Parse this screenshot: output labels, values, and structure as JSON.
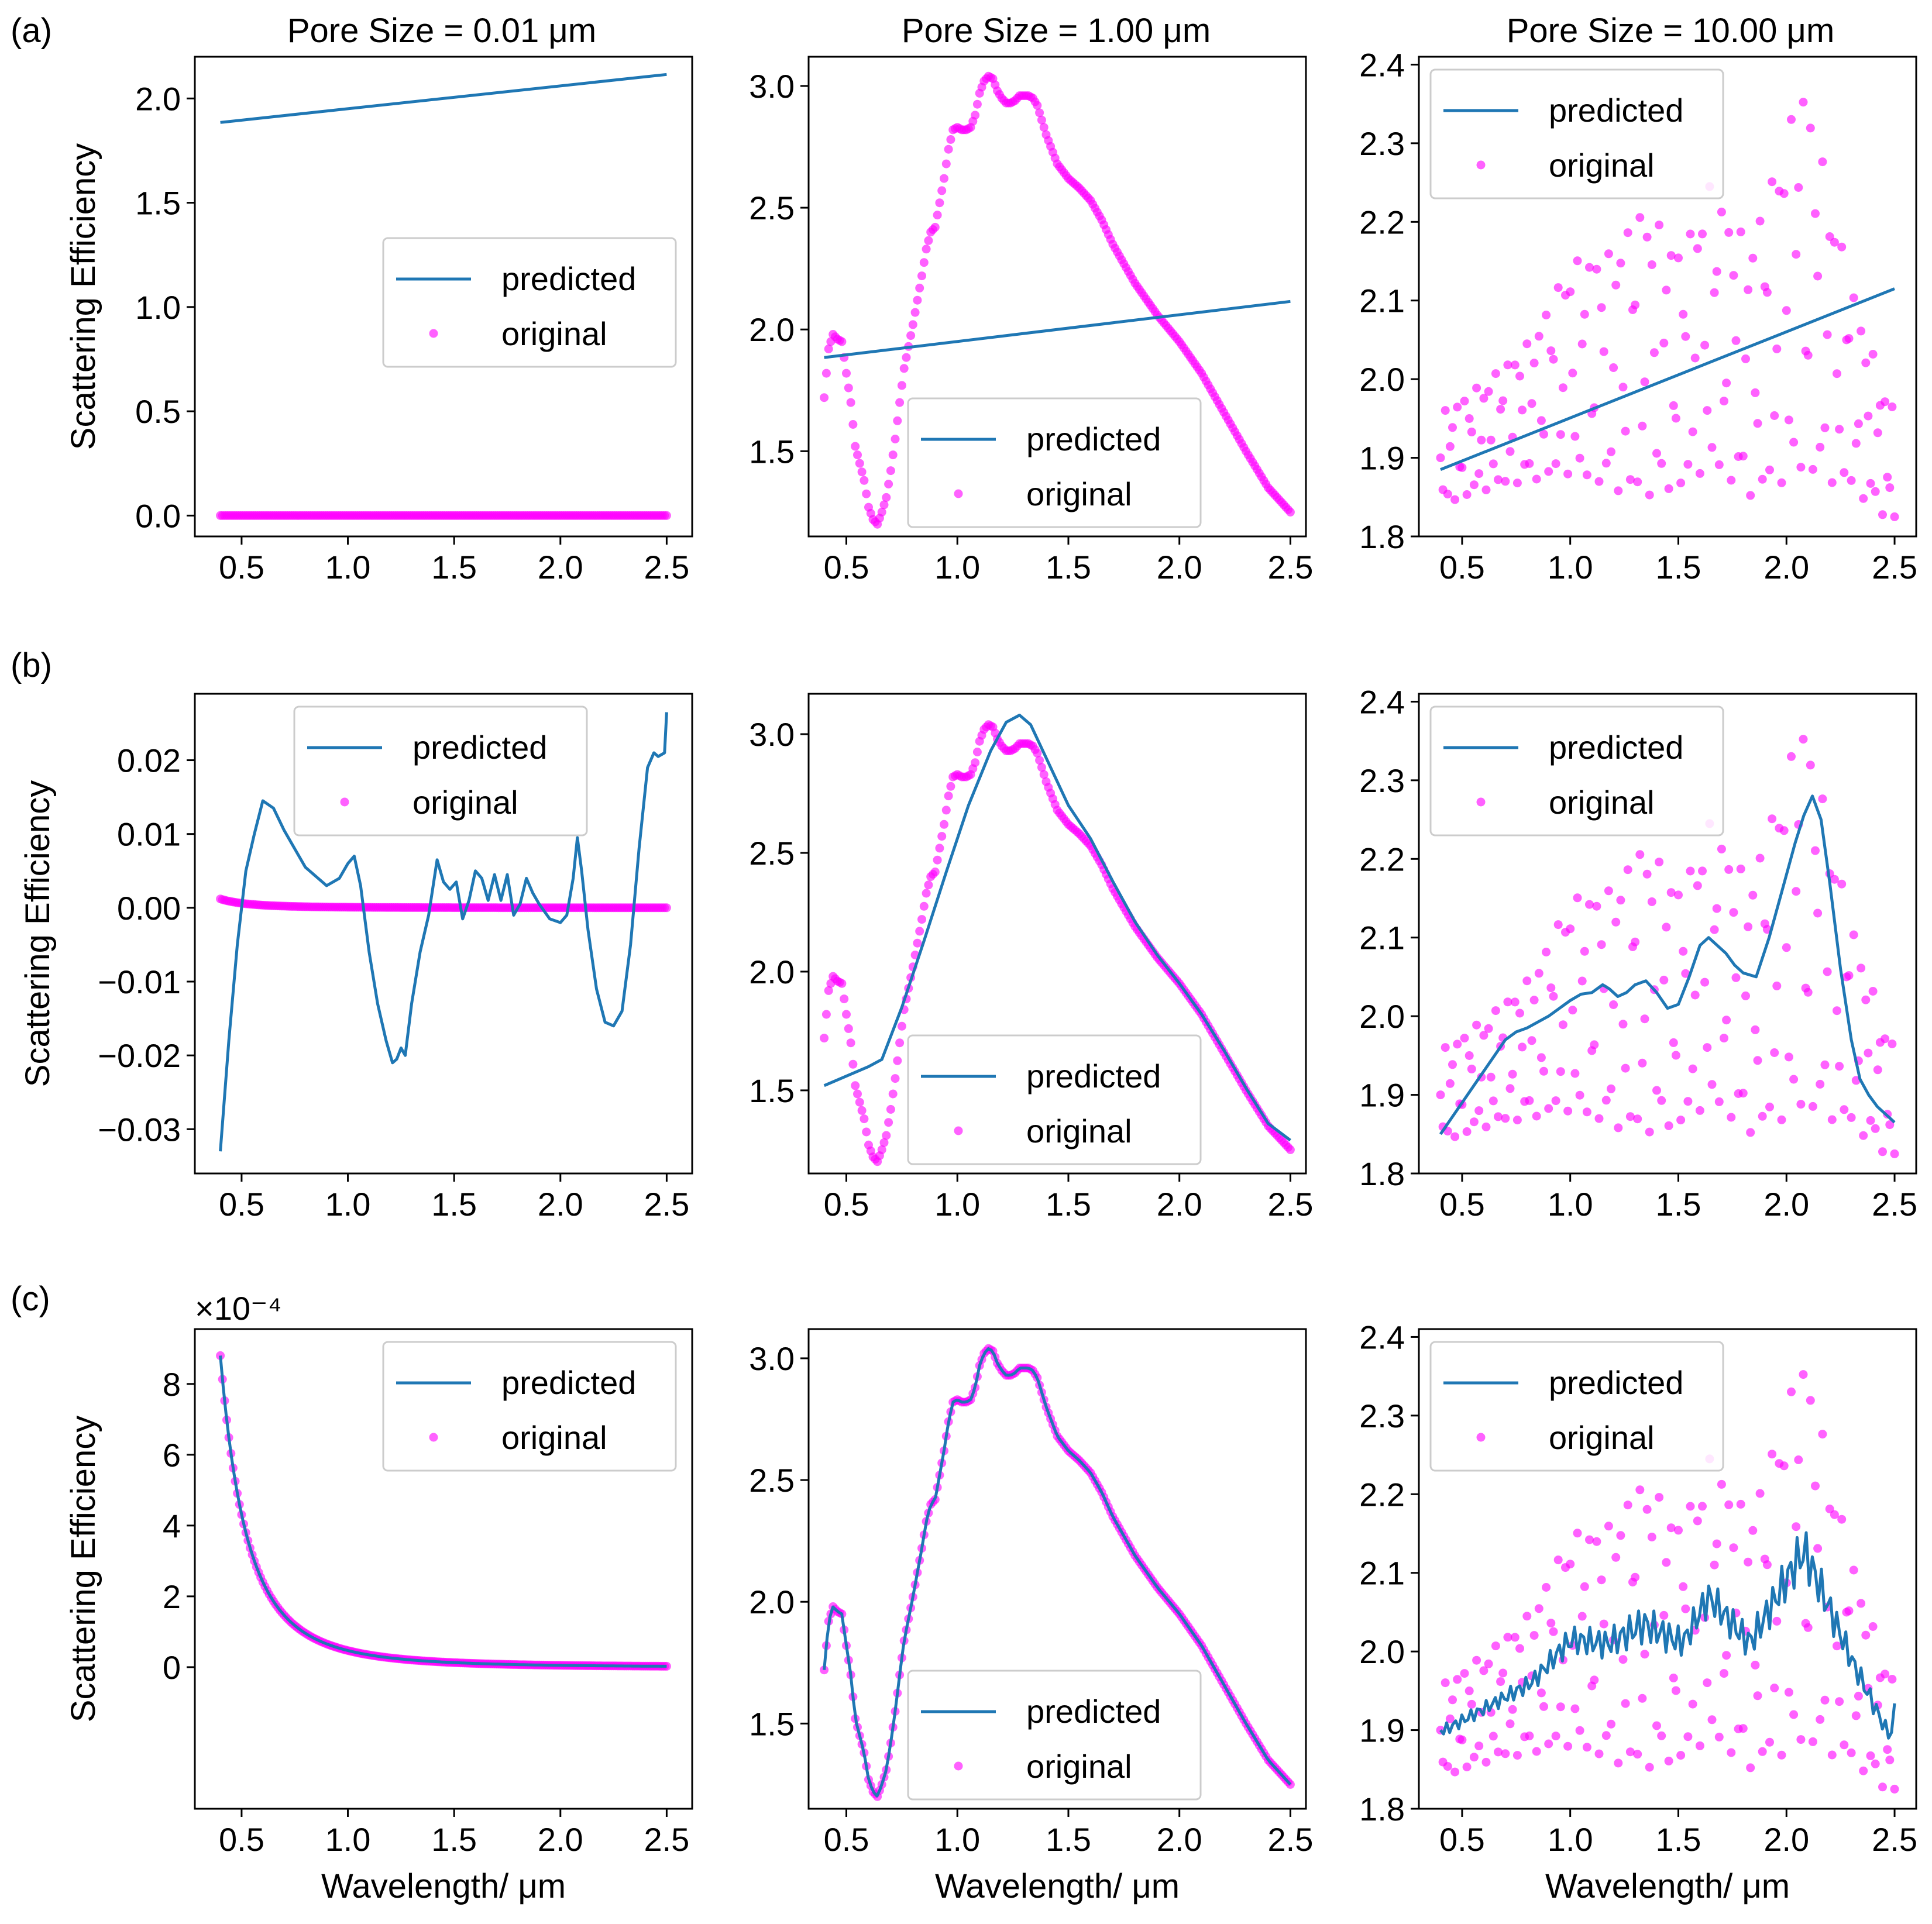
{
  "colors": {
    "predicted": "#1f77b4",
    "original": "#ff00ff",
    "axis": "#000000"
  },
  "xlabel_text": "Wavelength/ μm",
  "ylabel_text": "Scattering Efficiency",
  "legend_labels": {
    "predicted": "predicted",
    "original": "original"
  },
  "rows": [
    {
      "label": "(a)"
    },
    {
      "label": "(b)"
    },
    {
      "label": "(c)"
    }
  ],
  "columns": [
    {
      "title": "Pore Size = 0.01 μm"
    },
    {
      "title": "Pore Size = 1.00 μm"
    },
    {
      "title": "Pore Size = 10.00 μm"
    }
  ],
  "chart_data": [
    {
      "id": "a1",
      "type": "line+scatter",
      "title": "Pore Size = 0.01 μm",
      "xlabel": "",
      "ylabel": "Scattering Efficiency",
      "xlim": [
        0.28,
        2.62
      ],
      "ylim": [
        -0.1,
        2.2
      ],
      "xticks": [
        0.5,
        1.0,
        1.5,
        2.0,
        2.5
      ],
      "yticks": [
        0.0,
        0.5,
        1.0,
        1.5,
        2.0
      ],
      "ytick_labels": [
        "0.0",
        "0.5",
        "1.0",
        "1.5",
        "2.0"
      ],
      "legend": "center-right",
      "original_model": "zero",
      "predicted": {
        "x": [
          0.4,
          2.5
        ],
        "y": [
          1.885,
          2.115
        ]
      }
    },
    {
      "id": "a2",
      "type": "line+scatter",
      "title": "Pore Size = 1.00 μm",
      "xlabel": "",
      "ylabel": "",
      "xlim": [
        0.33,
        2.57
      ],
      "ylim": [
        1.15,
        3.12
      ],
      "xticks": [
        0.5,
        1.0,
        1.5,
        2.0,
        2.5
      ],
      "yticks": [
        1.5,
        2.0,
        2.5,
        3.0
      ],
      "ytick_labels": [
        "1.5",
        "2.0",
        "2.5",
        "3.0"
      ],
      "legend": "lower-center",
      "original_model": "p1",
      "predicted": {
        "x": [
          0.4,
          2.5
        ],
        "y": [
          1.885,
          2.115
        ]
      }
    },
    {
      "id": "a3",
      "type": "line+scatter",
      "title": "Pore Size = 10.00 μm",
      "xlabel": "",
      "ylabel": "",
      "xlim": [
        0.3,
        2.6
      ],
      "ylim": [
        1.8,
        2.41
      ],
      "xticks": [
        0.5,
        1.0,
        1.5,
        2.0,
        2.5
      ],
      "yticks": [
        1.8,
        1.9,
        2.0,
        2.1,
        2.2,
        2.3,
        2.4
      ],
      "ytick_labels": [
        "1.8",
        "1.9",
        "2.0",
        "2.1",
        "2.2",
        "2.3",
        "2.4"
      ],
      "legend": "upper-left",
      "original_model": "p10",
      "predicted": {
        "x": [
          0.4,
          2.5
        ],
        "y": [
          1.885,
          2.115
        ]
      }
    },
    {
      "id": "b1",
      "type": "line+scatter",
      "title": "",
      "xlabel": "",
      "ylabel": "Scattering Efficiency",
      "xlim": [
        0.28,
        2.62
      ],
      "ylim": [
        -0.036,
        0.029
      ],
      "xticks": [
        0.5,
        1.0,
        1.5,
        2.0,
        2.5
      ],
      "yticks": [
        -0.03,
        -0.02,
        -0.01,
        0.0,
        0.01,
        0.02
      ],
      "ytick_labels": [
        "−0.03",
        "−0.02",
        "−0.01",
        "0.00",
        "0.01",
        "0.02"
      ],
      "legend": "upper-center",
      "original_model": "small",
      "predicted": {
        "x": [
          0.4,
          0.44,
          0.48,
          0.52,
          0.56,
          0.6,
          0.65,
          0.7,
          0.8,
          0.9,
          0.96,
          1.0,
          1.03,
          1.06,
          1.1,
          1.14,
          1.18,
          1.21,
          1.23,
          1.25,
          1.27,
          1.3,
          1.34,
          1.38,
          1.42,
          1.45,
          1.48,
          1.51,
          1.54,
          1.57,
          1.6,
          1.63,
          1.66,
          1.69,
          1.72,
          1.75,
          1.78,
          1.81,
          1.84,
          1.87,
          1.9,
          1.95,
          2.0,
          2.03,
          2.06,
          2.08,
          2.1,
          2.13,
          2.17,
          2.21,
          2.25,
          2.29,
          2.33,
          2.37,
          2.41,
          2.44,
          2.46,
          2.49,
          2.5
        ],
        "y": [
          -0.033,
          -0.018,
          -0.005,
          0.005,
          0.01,
          0.0145,
          0.0135,
          0.0105,
          0.0055,
          0.003,
          0.004,
          0.006,
          0.007,
          0.003,
          -0.006,
          -0.013,
          -0.018,
          -0.021,
          -0.0205,
          -0.019,
          -0.02,
          -0.013,
          -0.006,
          -0.001,
          0.0065,
          0.0035,
          0.0025,
          0.0035,
          -0.0015,
          0.001,
          0.005,
          0.004,
          0.001,
          0.0045,
          0.001,
          0.0045,
          -0.001,
          0.0005,
          0.004,
          0.002,
          0.0005,
          -0.0015,
          -0.002,
          -0.001,
          0.004,
          0.0095,
          0.005,
          -0.003,
          -0.011,
          -0.0155,
          -0.016,
          -0.014,
          -0.005,
          0.008,
          0.019,
          0.021,
          0.0205,
          0.021,
          0.0265
        ]
      }
    },
    {
      "id": "b2",
      "type": "line+scatter",
      "title": "",
      "xlabel": "",
      "ylabel": "",
      "xlim": [
        0.33,
        2.57
      ],
      "ylim": [
        1.15,
        3.17
      ],
      "xticks": [
        0.5,
        1.0,
        1.5,
        2.0,
        2.5
      ],
      "yticks": [
        1.5,
        2.0,
        2.5,
        3.0
      ],
      "ytick_labels": [
        "1.5",
        "2.0",
        "2.5",
        "3.0"
      ],
      "legend": "lower-center",
      "original_model": "p1",
      "predicted": {
        "x": [
          0.4,
          0.5,
          0.6,
          0.66,
          0.75,
          0.85,
          0.95,
          1.05,
          1.15,
          1.22,
          1.28,
          1.33,
          1.4,
          1.5,
          1.6,
          1.7,
          1.8,
          1.9,
          2.0,
          2.1,
          2.2,
          2.3,
          2.4,
          2.5
        ],
        "y": [
          1.52,
          1.56,
          1.6,
          1.63,
          1.85,
          2.13,
          2.42,
          2.7,
          2.93,
          3.05,
          3.08,
          3.04,
          2.9,
          2.7,
          2.56,
          2.38,
          2.21,
          2.07,
          1.95,
          1.82,
          1.67,
          1.51,
          1.36,
          1.29
        ]
      }
    },
    {
      "id": "b3",
      "type": "line+scatter",
      "title": "",
      "xlabel": "",
      "ylabel": "",
      "xlim": [
        0.3,
        2.6
      ],
      "ylim": [
        1.8,
        2.41
      ],
      "xticks": [
        0.5,
        1.0,
        1.5,
        2.0,
        2.5
      ],
      "yticks": [
        1.8,
        1.9,
        2.0,
        2.1,
        2.2,
        2.3,
        2.4
      ],
      "ytick_labels": [
        "1.8",
        "1.9",
        "2.0",
        "2.1",
        "2.2",
        "2.3",
        "2.4"
      ],
      "legend": "upper-left",
      "original_model": "p10",
      "predicted": {
        "x": [
          0.4,
          0.45,
          0.5,
          0.55,
          0.6,
          0.65,
          0.7,
          0.75,
          0.8,
          0.9,
          1.0,
          1.05,
          1.1,
          1.15,
          1.18,
          1.22,
          1.26,
          1.3,
          1.35,
          1.4,
          1.45,
          1.5,
          1.55,
          1.6,
          1.64,
          1.68,
          1.72,
          1.76,
          1.8,
          1.86,
          1.92,
          1.98,
          2.04,
          2.08,
          2.12,
          2.16,
          2.2,
          2.25,
          2.3,
          2.34,
          2.38,
          2.42,
          2.46,
          2.5
        ],
        "y": [
          1.85,
          1.87,
          1.89,
          1.91,
          1.93,
          1.95,
          1.97,
          1.98,
          1.985,
          2.0,
          2.02,
          2.028,
          2.03,
          2.04,
          2.035,
          2.025,
          2.03,
          2.04,
          2.045,
          2.03,
          2.01,
          2.015,
          2.05,
          2.09,
          2.1,
          2.09,
          2.08,
          2.065,
          2.055,
          2.05,
          2.1,
          2.16,
          2.22,
          2.255,
          2.28,
          2.25,
          2.17,
          2.06,
          1.97,
          1.92,
          1.9,
          1.885,
          1.875,
          1.865
        ]
      }
    },
    {
      "id": "c1",
      "type": "line+scatter",
      "title": "",
      "xlabel": "Wavelength/ μm",
      "ylabel": "Scattering Efficiency",
      "xlim": [
        0.28,
        2.62
      ],
      "ylim": [
        -0.0004,
        0.000955
      ],
      "xticks": [
        0.5,
        1.0,
        1.5,
        2.0,
        2.5
      ],
      "yticks": [
        0,
        0.0002,
        0.0004,
        0.0006,
        0.0008
      ],
      "ytick_labels": [
        "0",
        "2",
        "4",
        "6",
        "8"
      ],
      "y_offset_text": "×10⁻⁴",
      "legend": "upper-right",
      "original_model": "decay",
      "predicted_model": "decay"
    },
    {
      "id": "c2",
      "type": "line+scatter",
      "title": "",
      "xlabel": "Wavelength/ μm",
      "ylabel": "",
      "xlim": [
        0.33,
        2.57
      ],
      "ylim": [
        1.15,
        3.12
      ],
      "xticks": [
        0.5,
        1.0,
        1.5,
        2.0,
        2.5
      ],
      "yticks": [
        1.5,
        2.0,
        2.5,
        3.0
      ],
      "ytick_labels": [
        "1.5",
        "2.0",
        "2.5",
        "3.0"
      ],
      "legend": "lower-center",
      "original_model": "p1",
      "predicted_model": "p1"
    },
    {
      "id": "c3",
      "type": "line+scatter",
      "title": "",
      "xlabel": "Wavelength/ μm",
      "ylabel": "",
      "xlim": [
        0.3,
        2.6
      ],
      "ylim": [
        1.8,
        2.41
      ],
      "xticks": [
        0.5,
        1.0,
        1.5,
        2.0,
        2.5
      ],
      "yticks": [
        1.8,
        1.9,
        2.0,
        2.1,
        2.2,
        2.3,
        2.4
      ],
      "ytick_labels": [
        "1.8",
        "1.9",
        "2.0",
        "2.1",
        "2.2",
        "2.3",
        "2.4"
      ],
      "legend": "upper-left",
      "original_model": "p10",
      "predicted_model": "p10wiggle"
    }
  ],
  "reference_curves": {
    "p1": {
      "x": [
        0.4,
        0.42,
        0.44,
        0.46,
        0.48,
        0.5,
        0.52,
        0.54,
        0.56,
        0.58,
        0.6,
        0.62,
        0.64,
        0.66,
        0.68,
        0.7,
        0.72,
        0.74,
        0.76,
        0.78,
        0.8,
        0.82,
        0.84,
        0.86,
        0.88,
        0.9,
        0.92,
        0.94,
        0.96,
        0.98,
        1.0,
        1.02,
        1.04,
        1.06,
        1.08,
        1.1,
        1.12,
        1.14,
        1.16,
        1.18,
        1.2,
        1.22,
        1.24,
        1.26,
        1.28,
        1.3,
        1.32,
        1.34,
        1.36,
        1.4,
        1.45,
        1.5,
        1.55,
        1.6,
        1.65,
        1.7,
        1.8,
        1.9,
        2.0,
        2.1,
        2.2,
        2.3,
        2.4,
        2.5
      ],
      "y": [
        1.72,
        1.92,
        1.98,
        1.96,
        1.95,
        1.82,
        1.7,
        1.52,
        1.45,
        1.38,
        1.27,
        1.22,
        1.2,
        1.25,
        1.31,
        1.42,
        1.55,
        1.7,
        1.84,
        1.93,
        2.02,
        2.12,
        2.22,
        2.33,
        2.4,
        2.42,
        2.52,
        2.62,
        2.74,
        2.82,
        2.83,
        2.82,
        2.82,
        2.83,
        2.88,
        2.97,
        3.02,
        3.04,
        3.03,
        2.98,
        2.95,
        2.93,
        2.93,
        2.94,
        2.96,
        2.96,
        2.96,
        2.95,
        2.92,
        2.8,
        2.68,
        2.62,
        2.58,
        2.53,
        2.45,
        2.35,
        2.19,
        2.06,
        1.95,
        1.82,
        1.66,
        1.5,
        1.35,
        1.25
      ]
    },
    "p10_hi": {
      "x": [
        0.42,
        0.62,
        0.82,
        1.0,
        1.18,
        1.34,
        1.52,
        1.64,
        1.83,
        2.08,
        2.3,
        2.47
      ],
      "y": [
        1.96,
        2.0,
        2.05,
        2.15,
        2.16,
        2.22,
        2.16,
        2.25,
        2.17,
        2.38,
        2.12,
        1.97
      ]
    },
    "p10_lo": {
      "x": [
        0.42,
        0.62,
        0.82,
        1.0,
        1.18,
        1.34,
        1.52,
        1.64,
        1.83,
        2.08,
        2.3,
        2.47
      ],
      "y": [
        1.84,
        1.86,
        1.87,
        1.88,
        1.86,
        1.85,
        1.86,
        1.89,
        1.85,
        1.88,
        1.86,
        1.82
      ]
    }
  }
}
